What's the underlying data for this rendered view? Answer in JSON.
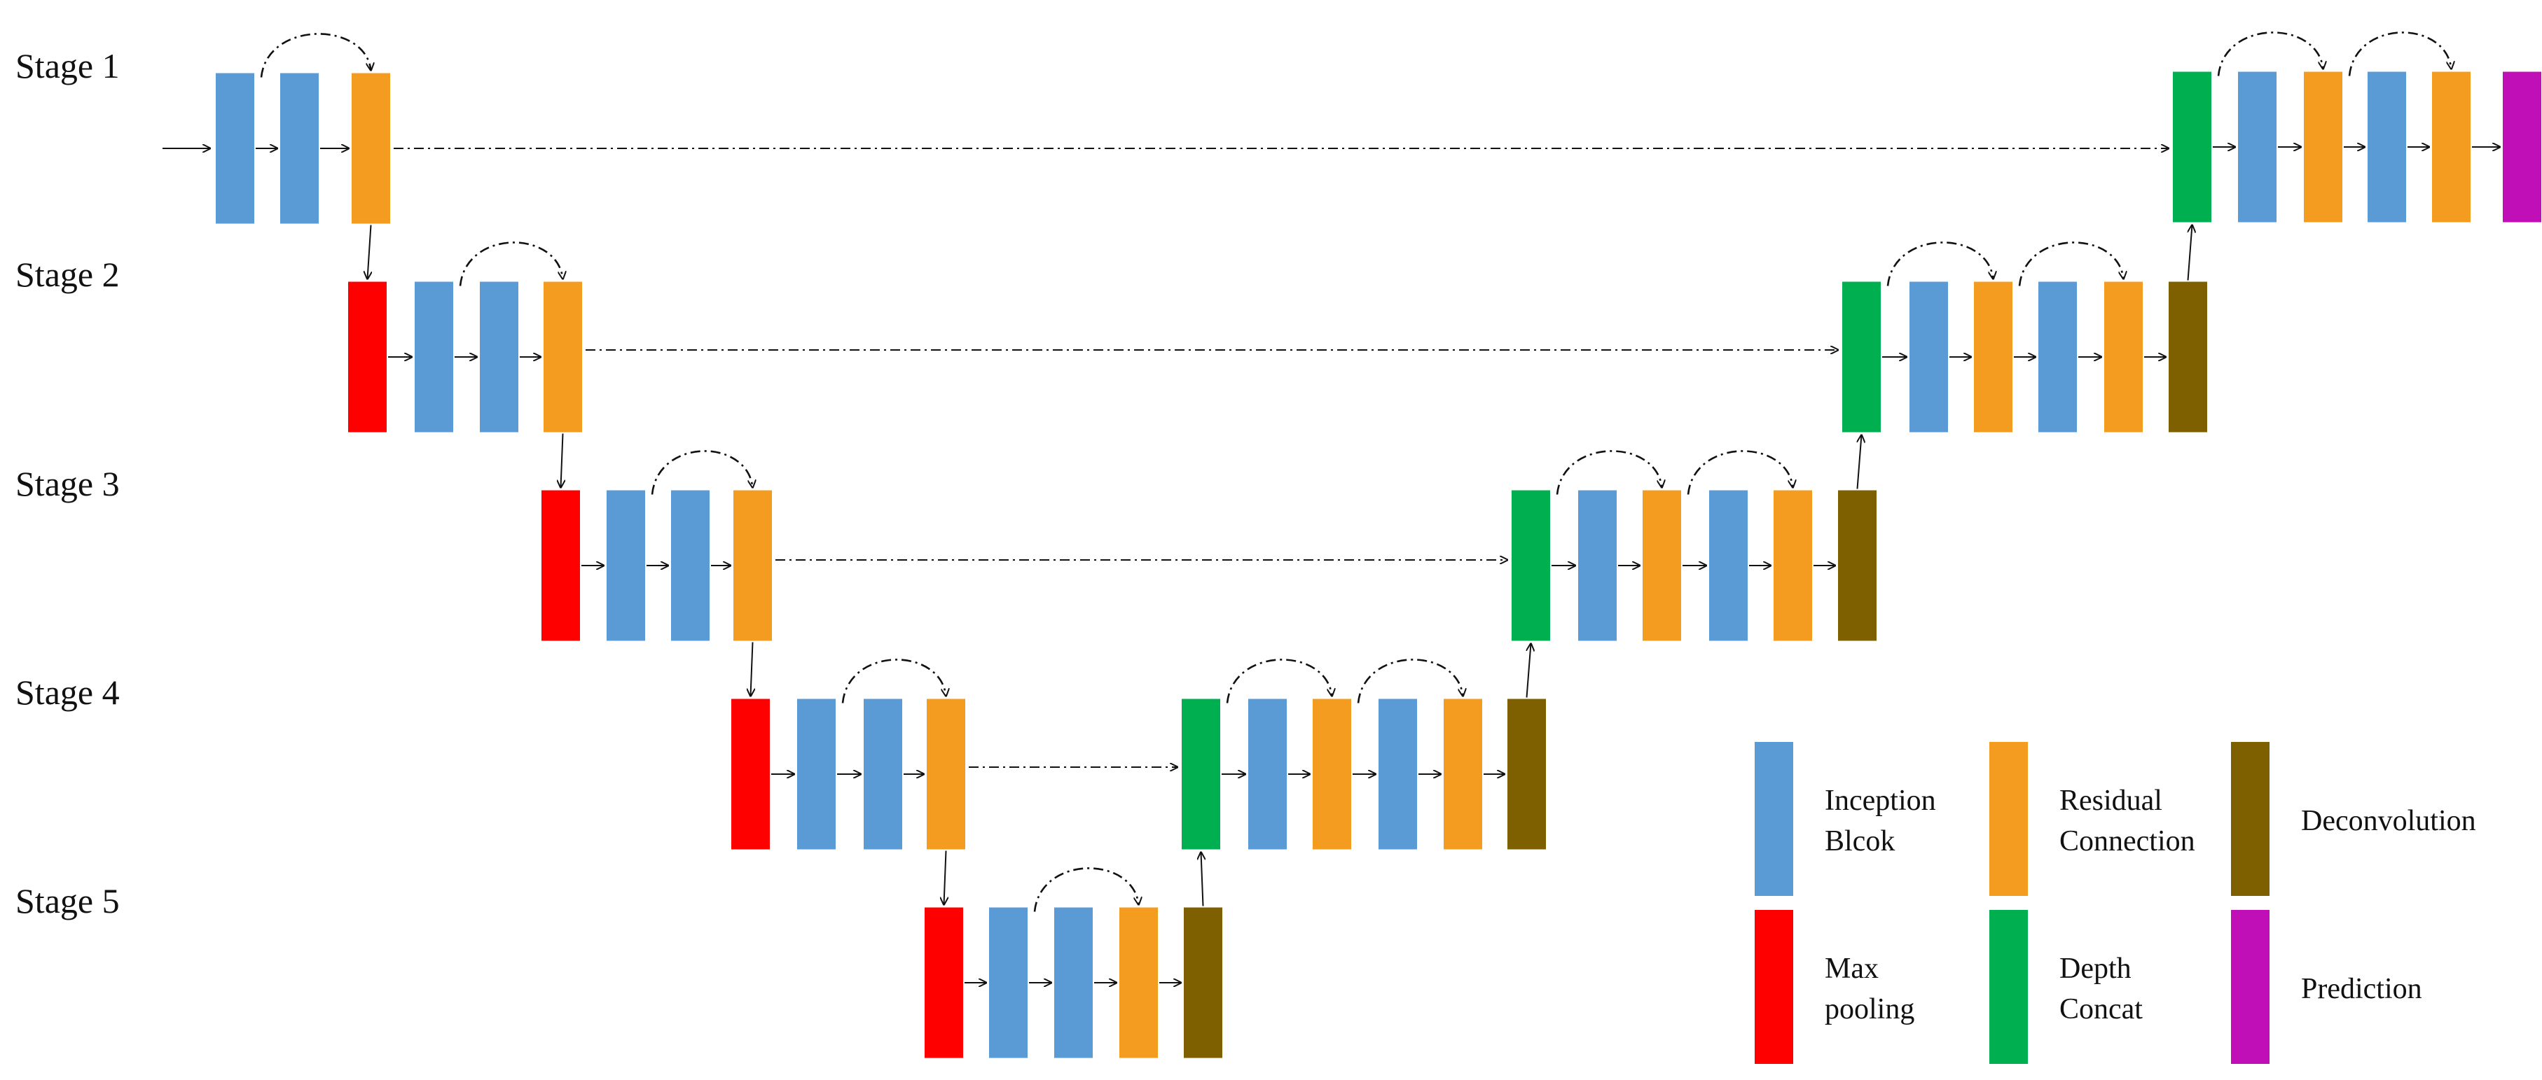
{
  "stages": [
    "Stage 1",
    "Stage 2",
    "Stage 3",
    "Stage 4",
    "Stage 5"
  ],
  "block_types": {
    "inception": {
      "color": "#5B9BD5"
    },
    "residual": {
      "color": "#F39C1F"
    },
    "maxpool": {
      "color": "#FF0000"
    },
    "concat": {
      "color": "#00B050"
    },
    "deconv": {
      "color": "#7F6000"
    },
    "prediction": {
      "color": "#C00FB6"
    }
  },
  "legend": [
    {
      "type": "inception",
      "lines": [
        "Inception",
        "Blcok"
      ]
    },
    {
      "type": "residual",
      "lines": [
        "Residual",
        "Connection"
      ]
    },
    {
      "type": "deconv",
      "lines": [
        "Deconvolution"
      ]
    },
    {
      "type": "maxpool",
      "lines": [
        "Max",
        "pooling"
      ]
    },
    {
      "type": "concat",
      "lines": [
        "Depth",
        "Concat"
      ]
    },
    {
      "type": "prediction",
      "lines": [
        "Prediction"
      ]
    }
  ],
  "encoder": [
    [
      "inception",
      "inception",
      "residual"
    ],
    [
      "maxpool",
      "inception",
      "inception",
      "residual"
    ],
    [
      "maxpool",
      "inception",
      "inception",
      "residual"
    ],
    [
      "maxpool",
      "inception",
      "inception",
      "residual"
    ],
    [
      "maxpool",
      "inception",
      "inception",
      "residual",
      "deconv"
    ]
  ],
  "decoder": [
    [
      "concat",
      "inception",
      "residual",
      "inception",
      "residual",
      "prediction"
    ],
    [
      "concat",
      "inception",
      "residual",
      "inception",
      "residual",
      "deconv"
    ],
    [
      "concat",
      "inception",
      "residual",
      "inception",
      "residual",
      "deconv"
    ],
    [
      "concat",
      "inception",
      "residual",
      "inception",
      "residual",
      "deconv"
    ]
  ]
}
